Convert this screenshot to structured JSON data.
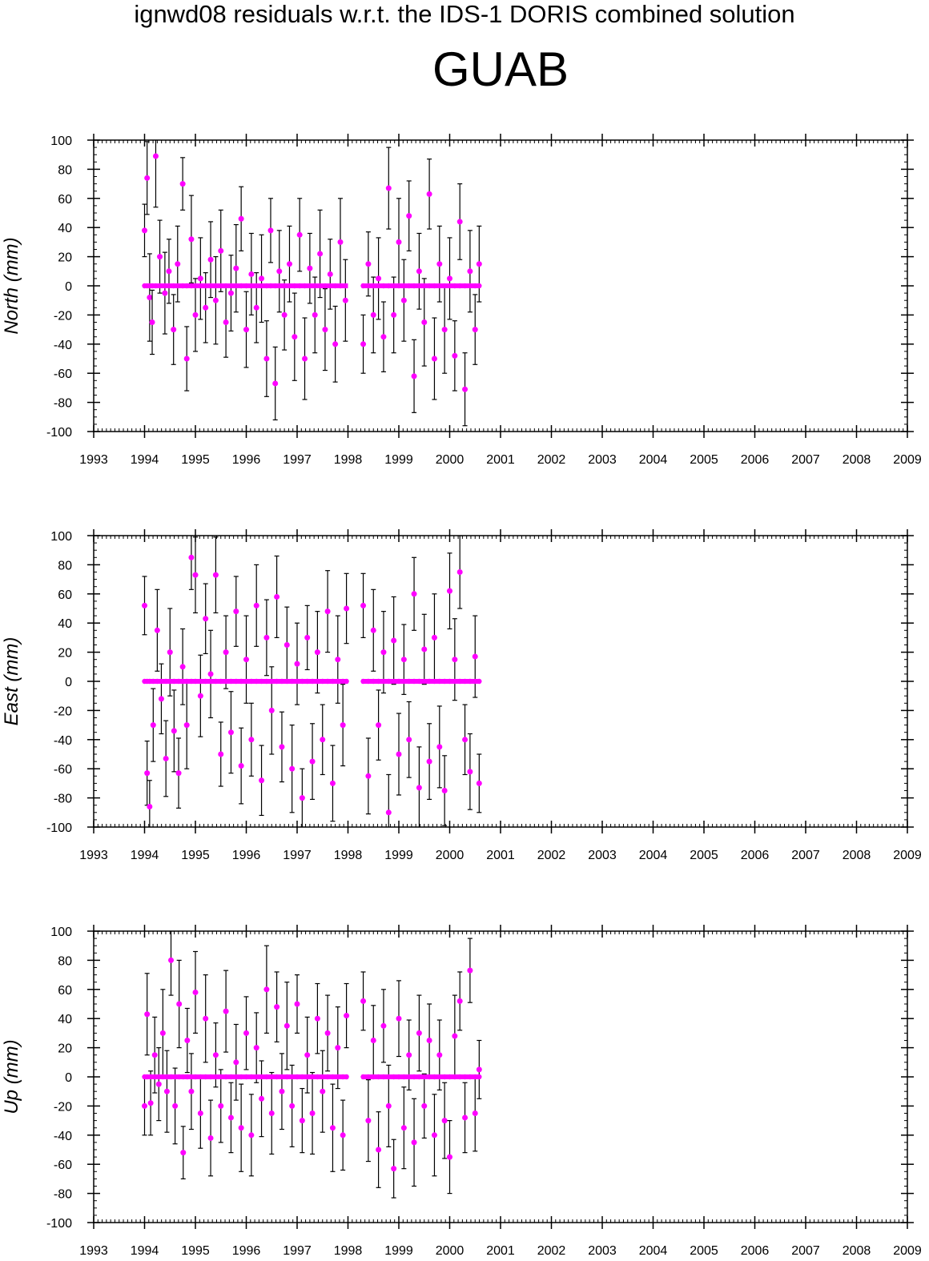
{
  "header": {
    "title": "ignwd08 residuals w.r.t. the IDS-1 DORIS combined solution",
    "station": "GUAB"
  },
  "colors": {
    "marker": "#ff00ff",
    "errorbar": "#000000",
    "axis": "#000000"
  },
  "chart_data": [
    {
      "type": "scatter",
      "ylabel": "North (mm)",
      "xlim": [
        1993,
        2009
      ],
      "ylim": [
        -100,
        100
      ],
      "x_ticks": [
        "1993",
        "1994",
        "1995",
        "1996",
        "1997",
        "1998",
        "1999",
        "2000",
        "2001",
        "2002",
        "2003",
        "2004",
        "2005",
        "2006",
        "2007",
        "2008",
        "2009"
      ],
      "y_ticks": [
        "100",
        "80",
        "60",
        "40",
        "20",
        "0",
        "-20",
        "-40",
        "-60",
        "-80",
        "-100"
      ],
      "grid": false,
      "series": [
        {
          "x": [
            1994.0,
            1994.05,
            1994.1,
            1994.15,
            1994.22,
            1994.3,
            1994.4,
            1994.48,
            1994.57,
            1994.65,
            1994.75,
            1994.83,
            1994.92,
            1995.0,
            1995.1,
            1995.2,
            1995.3,
            1995.4,
            1995.5,
            1995.6,
            1995.7,
            1995.8,
            1995.9,
            1996.0,
            1996.1,
            1996.2,
            1996.3,
            1996.4,
            1996.48,
            1996.57,
            1996.65,
            1996.75,
            1996.85,
            1996.95,
            1997.05,
            1997.15,
            1997.25,
            1997.35,
            1997.45,
            1997.55,
            1997.65,
            1997.75,
            1997.85,
            1997.95,
            1998.3,
            1998.4,
            1998.5,
            1998.6,
            1998.7,
            1998.8,
            1998.9,
            1999.0,
            1999.1,
            1999.2,
            1999.3,
            1999.4,
            1999.5,
            1999.6,
            1999.7,
            1999.8,
            1999.9,
            2000.0,
            2000.1,
            2000.2,
            2000.3,
            2000.4,
            2000.5,
            2000.58
          ],
          "y": [
            38,
            74,
            -8,
            -25,
            89,
            20,
            -5,
            10,
            -30,
            15,
            70,
            -50,
            32,
            -20,
            5,
            -15,
            18,
            -10,
            24,
            -25,
            -5,
            12,
            46,
            -30,
            8,
            -15,
            5,
            -50,
            38,
            -67,
            10,
            -20,
            15,
            -35,
            35,
            -50,
            12,
            -20,
            22,
            -30,
            8,
            -40,
            30,
            -10,
            -40,
            15,
            -20,
            5,
            -35,
            67,
            -20,
            30,
            -10,
            48,
            -62,
            10,
            -25,
            63,
            -50,
            15,
            -30,
            5,
            -48,
            44,
            -71,
            10,
            -30,
            15
          ],
          "err": [
            18,
            25,
            30,
            22,
            35,
            25,
            28,
            22,
            24,
            26,
            18,
            22,
            30,
            25,
            28,
            24,
            26,
            30,
            28,
            24,
            26,
            30,
            22,
            26,
            28,
            24,
            30,
            26,
            22,
            25,
            28,
            24,
            26,
            30,
            25,
            28,
            24,
            26,
            30,
            28,
            24,
            26,
            30,
            28,
            20,
            22,
            26,
            28,
            24,
            28,
            26,
            30,
            28,
            24,
            25,
            26,
            30,
            24,
            28,
            26,
            30,
            28,
            24,
            26,
            25,
            28,
            24,
            26
          ]
        }
      ]
    },
    {
      "type": "scatter",
      "ylabel": "East (mm)",
      "xlim": [
        1993,
        2009
      ],
      "ylim": [
        -100,
        100
      ],
      "x_ticks": [
        "1993",
        "1994",
        "1995",
        "1996",
        "1997",
        "1998",
        "1999",
        "2000",
        "2001",
        "2002",
        "2003",
        "2004",
        "2005",
        "2006",
        "2007",
        "2008",
        "2009"
      ],
      "y_ticks": [
        "100",
        "80",
        "60",
        "40",
        "20",
        "0",
        "-20",
        "-40",
        "-60",
        "-80",
        "-100"
      ],
      "grid": false,
      "series": [
        {
          "x": [
            1994.0,
            1994.05,
            1994.1,
            1994.17,
            1994.25,
            1994.33,
            1994.42,
            1994.5,
            1994.58,
            1994.67,
            1994.75,
            1994.83,
            1994.92,
            1995.0,
            1995.1,
            1995.2,
            1995.3,
            1995.4,
            1995.5,
            1995.6,
            1995.7,
            1995.8,
            1995.9,
            1996.0,
            1996.1,
            1996.2,
            1996.3,
            1996.4,
            1996.5,
            1996.6,
            1996.7,
            1996.8,
            1996.9,
            1997.0,
            1997.1,
            1997.2,
            1997.3,
            1997.4,
            1997.5,
            1997.6,
            1997.7,
            1997.8,
            1997.9,
            1997.97,
            1998.3,
            1998.4,
            1998.5,
            1998.6,
            1998.7,
            1998.8,
            1998.9,
            1999.0,
            1999.1,
            1999.2,
            1999.3,
            1999.4,
            1999.5,
            1999.6,
            1999.7,
            1999.8,
            1999.9,
            2000.0,
            2000.1,
            2000.2,
            2000.3,
            2000.4,
            2000.5,
            2000.58
          ],
          "y": [
            52,
            -63,
            -86,
            -30,
            35,
            -12,
            -53,
            20,
            -34,
            -63,
            10,
            -30,
            85,
            73,
            -10,
            43,
            5,
            73,
            -50,
            20,
            -35,
            48,
            -58,
            15,
            -40,
            52,
            -68,
            30,
            -20,
            58,
            -45,
            25,
            -60,
            12,
            -80,
            30,
            -55,
            20,
            -40,
            48,
            -70,
            15,
            -30,
            50,
            52,
            -65,
            35,
            -30,
            20,
            -90,
            28,
            -50,
            15,
            -40,
            60,
            -73,
            22,
            -55,
            30,
            -45,
            -75,
            62,
            15,
            75,
            -40,
            -62,
            17,
            -70
          ],
          "err": [
            20,
            22,
            18,
            25,
            28,
            24,
            26,
            30,
            28,
            24,
            26,
            30,
            22,
            26,
            28,
            24,
            30,
            26,
            22,
            25,
            28,
            24,
            26,
            30,
            25,
            28,
            24,
            26,
            30,
            28,
            24,
            26,
            30,
            28,
            20,
            22,
            26,
            28,
            24,
            28,
            26,
            30,
            28,
            24,
            22,
            26,
            28,
            24,
            28,
            26,
            30,
            28,
            24,
            26,
            25,
            28,
            24,
            26,
            30,
            28,
            24,
            26,
            28,
            25,
            24,
            26,
            28,
            20
          ]
        }
      ]
    },
    {
      "type": "scatter",
      "ylabel": "Up (mm)",
      "xlim": [
        1993,
        2009
      ],
      "ylim": [
        -100,
        100
      ],
      "x_ticks": [
        "1993",
        "1994",
        "1995",
        "1996",
        "1997",
        "1998",
        "1999",
        "2000",
        "2001",
        "2002",
        "2003",
        "2004",
        "2005",
        "2006",
        "2007",
        "2008",
        "2009"
      ],
      "y_ticks": [
        "100",
        "80",
        "60",
        "40",
        "20",
        "0",
        "-20",
        "-40",
        "-60",
        "-80",
        "-100"
      ],
      "grid": false,
      "series": [
        {
          "x": [
            1994.0,
            1994.05,
            1994.12,
            1994.2,
            1994.28,
            1994.36,
            1994.44,
            1994.52,
            1994.6,
            1994.68,
            1994.76,
            1994.84,
            1994.92,
            1995.0,
            1995.1,
            1995.2,
            1995.3,
            1995.4,
            1995.5,
            1995.6,
            1995.7,
            1995.8,
            1995.9,
            1996.0,
            1996.1,
            1996.2,
            1996.3,
            1996.4,
            1996.5,
            1996.6,
            1996.7,
            1996.8,
            1996.9,
            1997.0,
            1997.1,
            1997.2,
            1997.3,
            1997.4,
            1997.5,
            1997.6,
            1997.7,
            1997.8,
            1997.9,
            1997.97,
            1998.3,
            1998.4,
            1998.5,
            1998.6,
            1998.7,
            1998.8,
            1998.9,
            1999.0,
            1999.1,
            1999.2,
            1999.3,
            1999.4,
            1999.5,
            1999.6,
            1999.7,
            1999.8,
            1999.9,
            2000.0,
            2000.1,
            2000.2,
            2000.3,
            2000.4,
            2000.5,
            2000.58
          ],
          "y": [
            -20,
            43,
            -18,
            15,
            -5,
            30,
            -10,
            80,
            -20,
            50,
            -52,
            25,
            -10,
            58,
            -25,
            40,
            -42,
            15,
            -20,
            45,
            -28,
            10,
            -35,
            30,
            -40,
            20,
            -15,
            60,
            -25,
            48,
            -10,
            35,
            -20,
            50,
            -30,
            15,
            -25,
            40,
            -10,
            30,
            -35,
            20,
            -40,
            42,
            52,
            -30,
            25,
            -50,
            35,
            -20,
            -63,
            40,
            -35,
            15,
            -45,
            30,
            -20,
            25,
            -40,
            15,
            -30,
            -55,
            28,
            52,
            -28,
            73,
            -25,
            5
          ],
          "err": [
            20,
            28,
            22,
            26,
            25,
            30,
            28,
            24,
            26,
            30,
            18,
            22,
            26,
            28,
            24,
            30,
            26,
            22,
            25,
            28,
            24,
            26,
            30,
            25,
            28,
            24,
            26,
            30,
            28,
            24,
            26,
            30,
            28,
            20,
            22,
            26,
            28,
            24,
            28,
            26,
            30,
            28,
            24,
            22,
            20,
            28,
            24,
            26,
            25,
            28,
            20,
            26,
            28,
            24,
            30,
            26,
            22,
            25,
            28,
            24,
            26,
            25,
            28,
            20,
            24,
            22,
            26,
            20
          ]
        }
      ]
    }
  ]
}
